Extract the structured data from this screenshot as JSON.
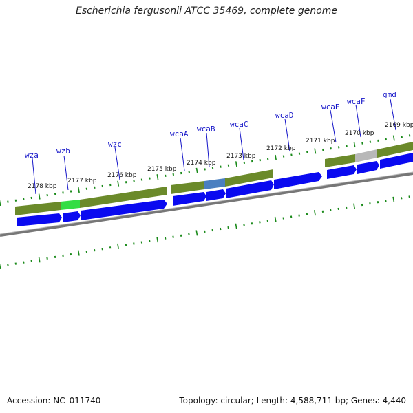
{
  "title": "Escherichia fergusonii ATCC 35469, complete genome",
  "footer": {
    "accession": "Accession: NC_011740",
    "summary": "Topology: circular; Length: 4,588,711 bp; Genes: 4,440"
  },
  "colors": {
    "gene_arrow": "#0a0af0",
    "cds_band": "#6b8a2a",
    "cds_band_light": "#93a85a",
    "highlight_green": "#33dd44",
    "highlight_blue": "#4a7fc0",
    "highlight_grey": "#b8b8b8",
    "backbone": "#888888",
    "tick": "#1a8a1a",
    "gene_label": "#1515c8"
  },
  "gene_labels": [
    "wza",
    "wzb",
    "wzc",
    "wcaA",
    "wcaB",
    "wcaC",
    "wcaD",
    "wcaE",
    "wcaF",
    "gmd"
  ],
  "kbp_labels": [
    "2178 kbp",
    "2177 kbp",
    "2176 kbp",
    "2175 kbp",
    "2174 kbp",
    "2173 kbp",
    "2172 kbp",
    "2171 kbp",
    "2170 kbp",
    "2169 kbp"
  ]
}
